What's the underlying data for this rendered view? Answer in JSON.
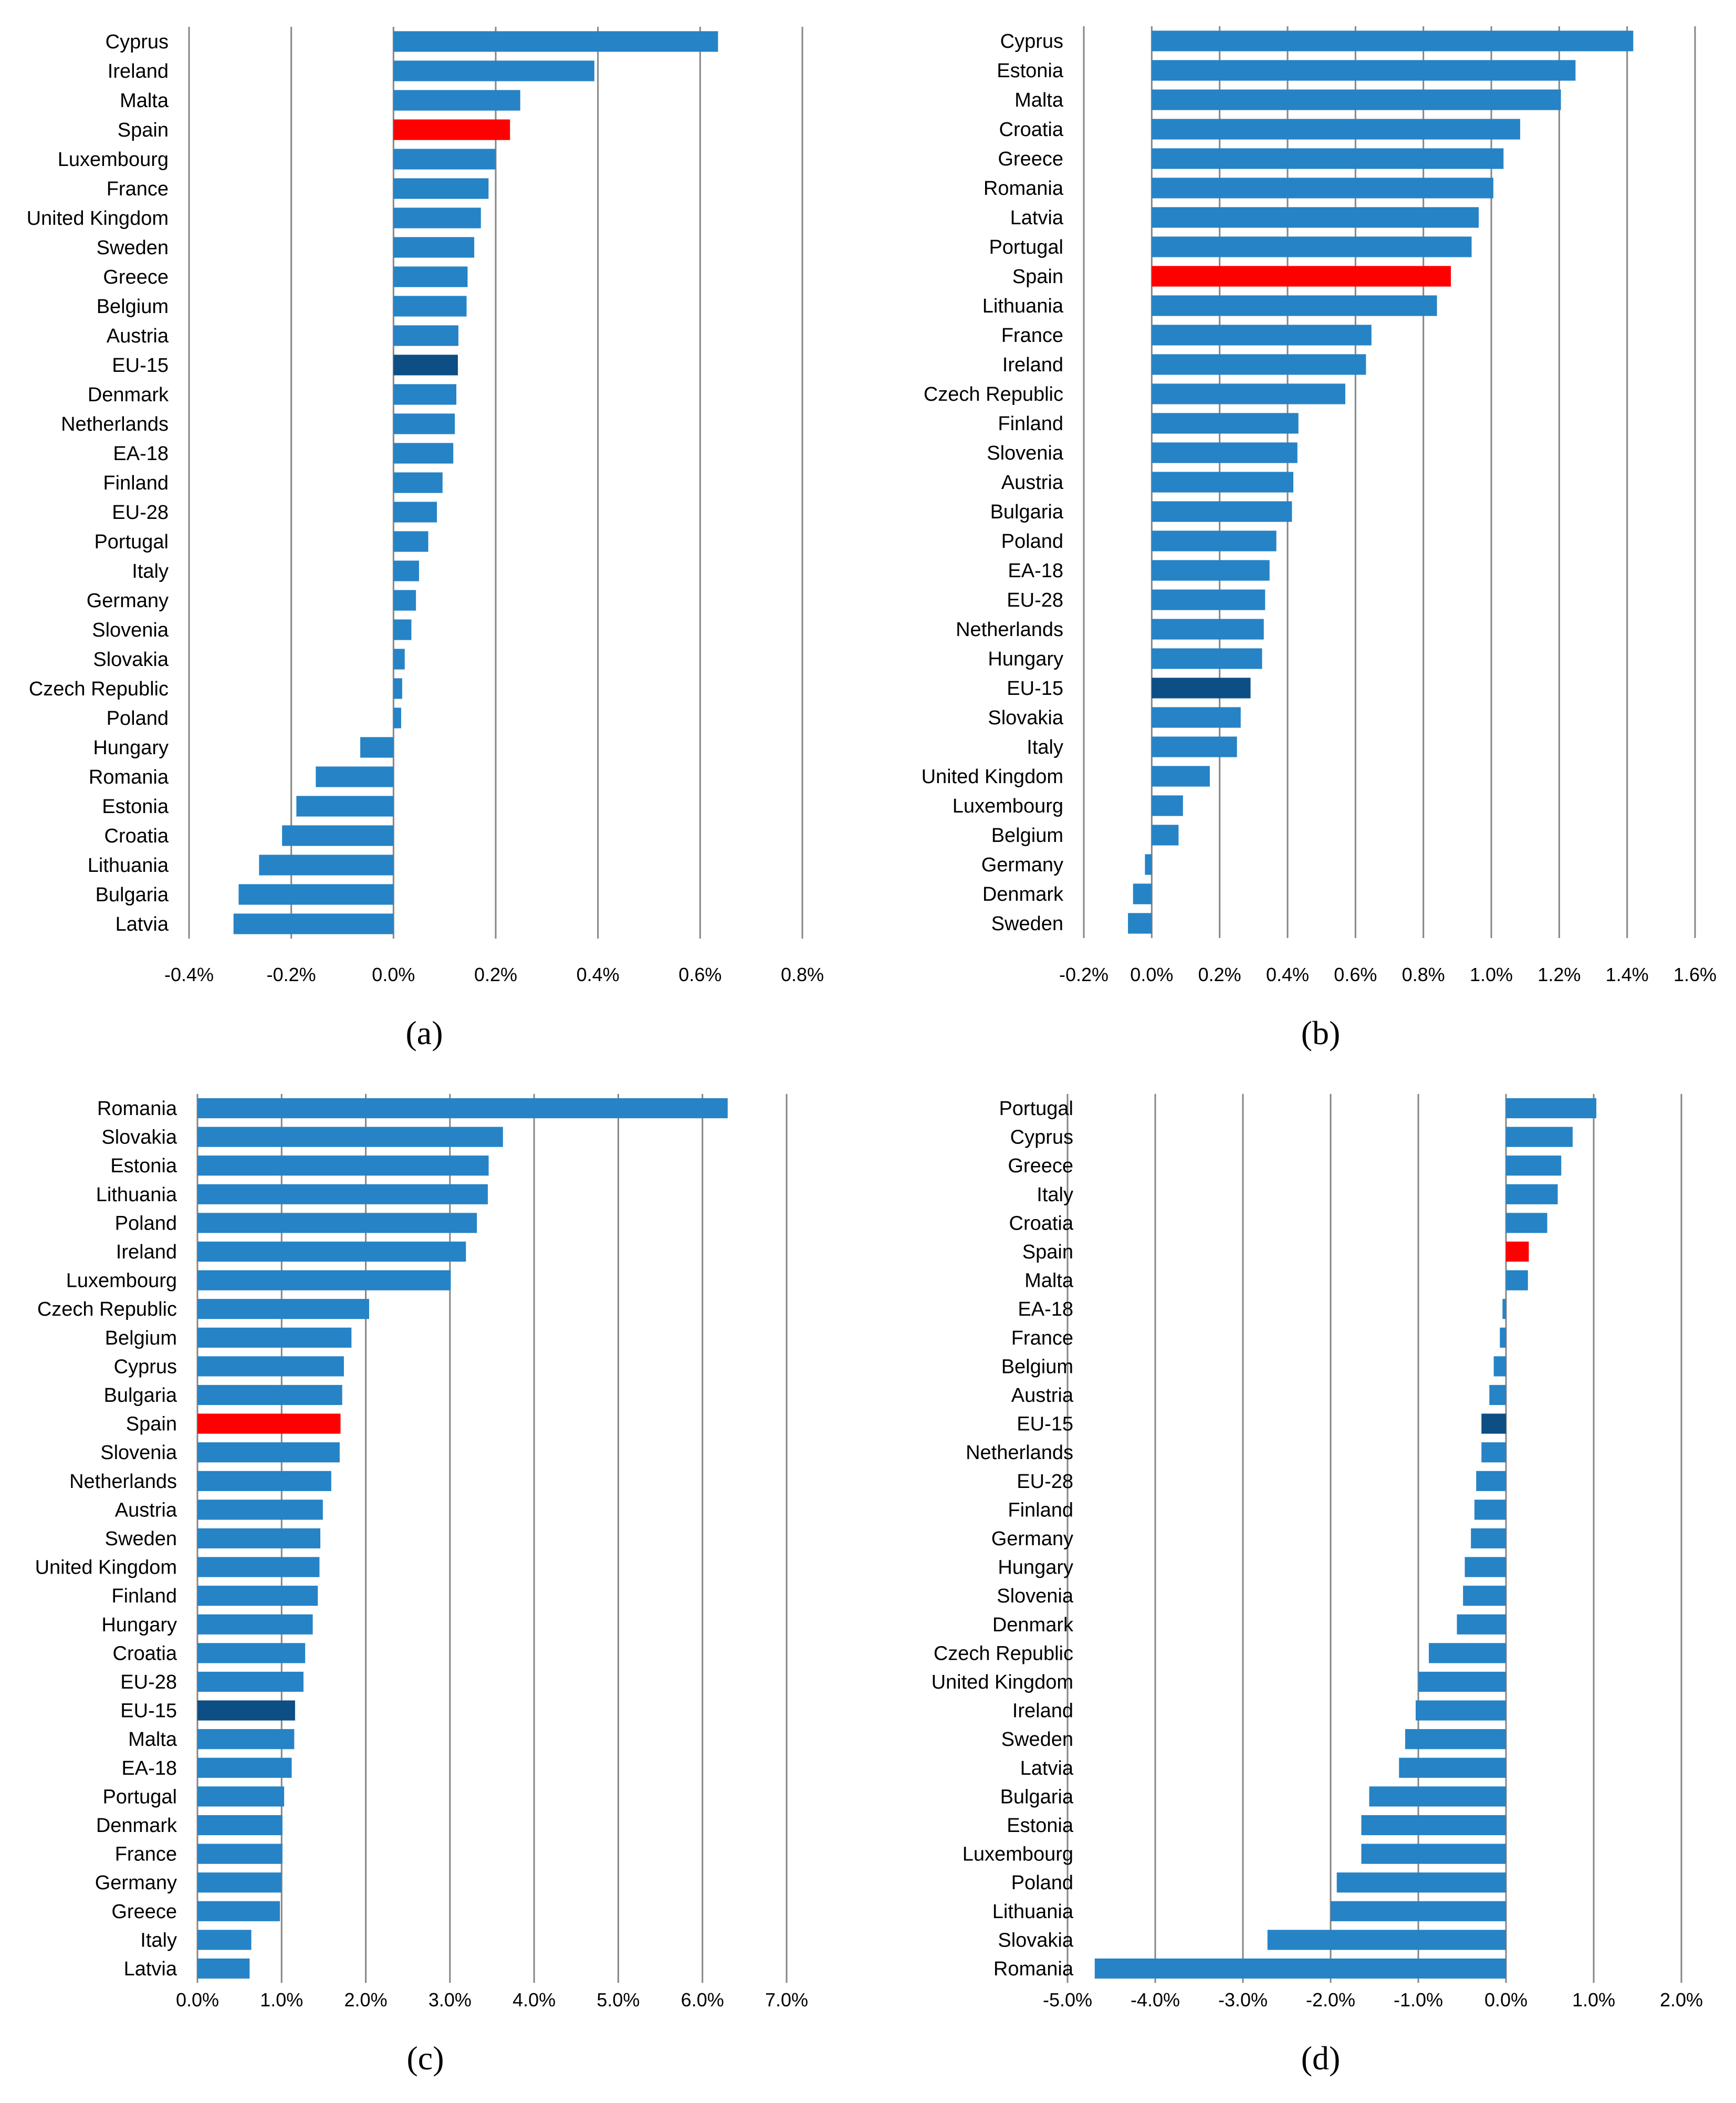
{
  "colors": {
    "bar": "#2683C6",
    "highlight": "#FF0000",
    "eu15": "#0D4E84",
    "grid": "#868686"
  },
  "chart_data": [
    {
      "type": "bar",
      "orientation": "horizontal",
      "panel_label": "(a)",
      "xlim": [
        -0.4,
        0.8
      ],
      "xticks": [
        -0.4,
        -0.2,
        0.0,
        0.2,
        0.4,
        0.6,
        0.8
      ],
      "tick_labels": [
        "-0.4%",
        "-0.2%",
        "0.0%",
        "0.2%",
        "0.4%",
        "0.6%",
        "0.8%"
      ],
      "highlight": {
        "Spain": "highlight",
        "EU-15": "eu15"
      },
      "categories": [
        "Cyprus",
        "Ireland",
        "Malta",
        "Spain",
        "Luxembourg",
        "France",
        "United Kingdom",
        "Sweden",
        "Greece",
        "Belgium",
        "Austria",
        "EU-15",
        "Denmark",
        "Netherlands",
        "EA-18",
        "Finland",
        "EU-28",
        "Portugal",
        "Italy",
        "Germany",
        "Slovenia",
        "Slovakia",
        "Czech Republic",
        "Poland",
        "Hungary",
        "Romania",
        "Estonia",
        "Croatia",
        "Lithuania",
        "Bulgaria",
        "Latvia"
      ],
      "values": [
        0.635,
        0.393,
        0.248,
        0.228,
        0.2,
        0.186,
        0.171,
        0.158,
        0.145,
        0.143,
        0.127,
        0.126,
        0.123,
        0.12,
        0.117,
        0.096,
        0.085,
        0.068,
        0.05,
        0.044,
        0.035,
        0.022,
        0.017,
        0.015,
        -0.065,
        -0.152,
        -0.19,
        -0.218,
        -0.263,
        -0.303,
        -0.313
      ]
    },
    {
      "type": "bar",
      "orientation": "horizontal",
      "panel_label": "(b)",
      "xlim": [
        -0.2,
        1.6
      ],
      "xticks": [
        -0.2,
        0.0,
        0.2,
        0.4,
        0.6,
        0.8,
        1.0,
        1.2,
        1.4,
        1.6
      ],
      "tick_labels": [
        "-0.2%",
        "0.0%",
        "0.2%",
        "0.4%",
        "0.6%",
        "0.8%",
        "1.0%",
        "1.2%",
        "1.4%",
        "1.6%"
      ],
      "highlight": {
        "Spain": "highlight",
        "EU-15": "eu15"
      },
      "categories": [
        "Cyprus",
        "Estonia",
        "Malta",
        "Croatia",
        "Greece",
        "Romania",
        "Latvia",
        "Portugal",
        "Spain",
        "Lithuania",
        "France",
        "Ireland",
        "Czech Republic",
        "Finland",
        "Slovenia",
        "Austria",
        "Bulgaria",
        "Poland",
        "EA-18",
        "EU-28",
        "Netherlands",
        "Hungary",
        "EU-15",
        "Slovakia",
        "Italy",
        "United Kingdom",
        "Luxembourg",
        "Belgium",
        "Germany",
        "Denmark",
        "Sweden"
      ],
      "values": [
        1.418,
        1.248,
        1.205,
        1.085,
        1.036,
        1.006,
        0.963,
        0.942,
        0.881,
        0.84,
        0.647,
        0.631,
        0.57,
        0.432,
        0.429,
        0.417,
        0.413,
        0.367,
        0.347,
        0.334,
        0.33,
        0.325,
        0.291,
        0.262,
        0.251,
        0.171,
        0.092,
        0.079,
        -0.02,
        -0.055,
        -0.07
      ]
    },
    {
      "type": "bar",
      "orientation": "horizontal",
      "panel_label": "(c)",
      "xlim": [
        0.0,
        7.0
      ],
      "xticks": [
        0.0,
        1.0,
        2.0,
        3.0,
        4.0,
        5.0,
        6.0,
        7.0
      ],
      "tick_labels": [
        "0.0%",
        "1.0%",
        "2.0%",
        "3.0%",
        "4.0%",
        "5.0%",
        "6.0%",
        "7.0%"
      ],
      "highlight": {
        "Spain": "highlight",
        "EU-15": "eu15"
      },
      "categories": [
        "Romania",
        "Slovakia",
        "Estonia",
        "Lithuania",
        "Poland",
        "Ireland",
        "Luxembourg",
        "Czech Republic",
        "Belgium",
        "Cyprus",
        "Bulgaria",
        "Spain",
        "Slovenia",
        "Netherlands",
        "Austria",
        "Sweden",
        "United Kingdom",
        "Finland",
        "Hungary",
        "Croatia",
        "EU-28",
        "EU-15",
        "Malta",
        "EA-18",
        "Portugal",
        "Denmark",
        "France",
        "Germany",
        "Greece",
        "Italy",
        "Latvia"
      ],
      "values": [
        6.3,
        3.63,
        3.46,
        3.45,
        3.32,
        3.19,
        3.01,
        2.04,
        1.83,
        1.74,
        1.72,
        1.7,
        1.69,
        1.59,
        1.49,
        1.46,
        1.45,
        1.43,
        1.37,
        1.28,
        1.26,
        1.16,
        1.15,
        1.12,
        1.03,
        1.01,
        1.01,
        1.0,
        0.98,
        0.64,
        0.62
      ]
    },
    {
      "type": "bar",
      "orientation": "horizontal",
      "panel_label": "(d)",
      "xlim": [
        -5.0,
        2.0
      ],
      "xticks": [
        -5.0,
        -4.0,
        -3.0,
        -2.0,
        -1.0,
        0.0,
        1.0,
        2.0
      ],
      "tick_labels": [
        "-5.0%",
        "-4.0%",
        "-3.0%",
        "-2.0%",
        "-1.0%",
        "0.0%",
        "1.0%",
        "2.0%"
      ],
      "highlight": {
        "Spain": "highlight",
        "EU-15": "eu15"
      },
      "categories": [
        "Portugal",
        "Cyprus",
        "Greece",
        "Italy",
        "Croatia",
        "Spain",
        "Malta",
        "EA-18",
        "France",
        "Belgium",
        "Austria",
        "EU-15",
        "Netherlands",
        "EU-28",
        "Finland",
        "Germany",
        "Hungary",
        "Slovenia",
        "Denmark",
        "Czech Republic",
        "United Kingdom",
        "Ireland",
        "Sweden",
        "Latvia",
        "Bulgaria",
        "Estonia",
        "Luxembourg",
        "Poland",
        "Lithuania",
        "Slovakia",
        "Romania"
      ],
      "values": [
        1.03,
        0.76,
        0.63,
        0.59,
        0.47,
        0.26,
        0.25,
        -0.04,
        -0.07,
        -0.14,
        -0.19,
        -0.28,
        -0.28,
        -0.34,
        -0.36,
        -0.4,
        -0.47,
        -0.49,
        -0.56,
        -0.88,
        -1.0,
        -1.03,
        -1.15,
        -1.22,
        -1.56,
        -1.65,
        -1.65,
        -1.93,
        -2.0,
        -2.72,
        -4.69
      ]
    }
  ]
}
